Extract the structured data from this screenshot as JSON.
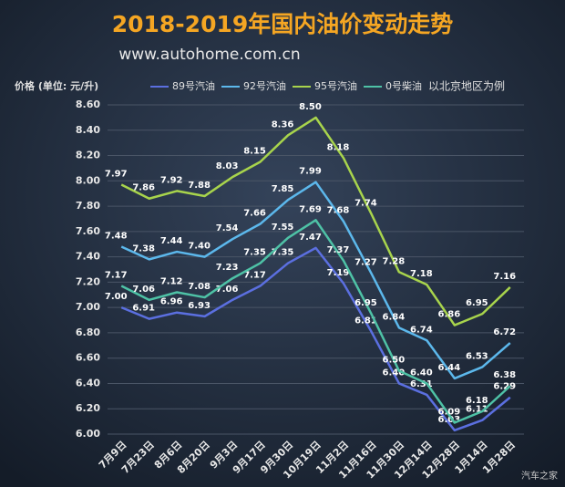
{
  "chart_data": {
    "type": "line",
    "title": "2018-2019年国内油价变动走势",
    "subtitle": "www.autohome.com.cn",
    "y_label": "价格 (单位: 元/升)",
    "note": "以北京地区为例",
    "watermark": "汽车之家",
    "categories": [
      "7月9日",
      "7月23日",
      "8月6日",
      "8月20日",
      "9月3日",
      "9月17日",
      "9月30日",
      "10月19日",
      "11月2日",
      "11月16日",
      "11月30日",
      "12月14日",
      "12月28日",
      "1月14日",
      "1月28日"
    ],
    "series": [
      {
        "name": "89号汽油",
        "color": "#5b6fe0",
        "values": [
          7.0,
          6.91,
          6.96,
          6.93,
          7.06,
          7.17,
          7.35,
          7.47,
          7.19,
          6.81,
          6.4,
          6.31,
          6.03,
          6.11,
          6.29
        ],
        "value_labels": [
          "7.00",
          "6.91",
          "6.96",
          "6.93",
          "7.06",
          "7.17",
          "7.35",
          "7.47",
          "7.19",
          "6.81",
          "6.40",
          "6.31",
          "6.03",
          "6.11",
          "6.29"
        ]
      },
      {
        "name": "92号汽油",
        "color": "#5cb8ec",
        "values": [
          7.48,
          7.38,
          7.44,
          7.4,
          7.54,
          7.66,
          7.85,
          7.99,
          7.68,
          7.27,
          6.84,
          6.74,
          6.44,
          6.53,
          6.72
        ],
        "value_labels": [
          "7.48",
          "7.38",
          "7.44",
          "7.40",
          "7.54",
          "7.66",
          "7.85",
          "7.99",
          "7.68",
          "7.27",
          "6.84",
          "6.74",
          "6.44",
          "6.53",
          "6.72"
        ]
      },
      {
        "name": "95号汽油",
        "color": "#a8d44c",
        "values": [
          7.97,
          7.86,
          7.92,
          7.88,
          8.03,
          8.15,
          8.36,
          8.5,
          8.18,
          7.74,
          7.28,
          7.18,
          6.86,
          6.95,
          7.16
        ],
        "value_labels": [
          "7.97",
          "7.86",
          "7.92",
          "7.88",
          "8.03",
          "8.15",
          "8.36",
          "8.50",
          "8.18",
          "7.74",
          "7.28",
          "7.18",
          "6.86",
          "6.95",
          "7.16"
        ]
      },
      {
        "name": "0号柴油",
        "color": "#4ec2a6",
        "values": [
          7.17,
          7.06,
          7.12,
          7.08,
          7.23,
          7.35,
          7.55,
          7.69,
          7.37,
          6.95,
          6.5,
          6.4,
          6.09,
          6.18,
          6.38
        ],
        "value_labels": [
          "7.17",
          "7.06",
          "7.12",
          "7.08",
          "7.23",
          "7.35",
          "7.55",
          "7.69",
          "7.37",
          "6.95",
          "6.50",
          "6.40",
          "6.09",
          "6.18",
          "6.38"
        ]
      }
    ],
    "ylim": [
      6.0,
      8.6
    ],
    "yticks": [
      {
        "value": 6.0,
        "label": "6.00"
      },
      {
        "value": 6.2,
        "label": "6.20"
      },
      {
        "value": 6.4,
        "label": "6.40"
      },
      {
        "value": 6.6,
        "label": "6.60"
      },
      {
        "value": 6.8,
        "label": "6.80"
      },
      {
        "value": 7.0,
        "label": "7.00"
      },
      {
        "value": 7.2,
        "label": "7.20"
      },
      {
        "value": 7.4,
        "label": "7.40"
      },
      {
        "value": 7.6,
        "label": "7.60"
      },
      {
        "value": 7.8,
        "label": "7.80"
      },
      {
        "value": 8.0,
        "label": "8.00"
      },
      {
        "value": 8.2,
        "label": "8.20"
      },
      {
        "value": 8.4,
        "label": "8.40"
      },
      {
        "value": 8.6,
        "label": "8.60"
      }
    ],
    "grid": true
  }
}
